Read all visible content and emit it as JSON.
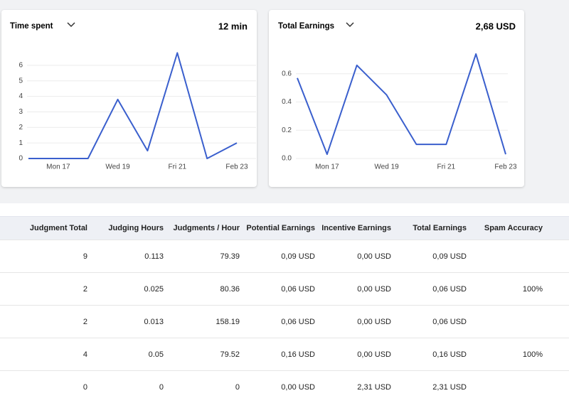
{
  "chart_data": [
    {
      "type": "line",
      "title": "Time spent",
      "total": "12 min",
      "color": "#3a5fcd",
      "categories": [
        null,
        "Mon 17",
        null,
        "Wed 19",
        null,
        "Fri 21",
        null,
        "Feb 23"
      ],
      "values": [
        0,
        0,
        0,
        3.8,
        0.5,
        6.8,
        0,
        1
      ],
      "ylim": [
        0,
        7
      ],
      "yticks": [
        0,
        1,
        2,
        3,
        4,
        5,
        6
      ],
      "grid": true
    },
    {
      "type": "line",
      "title": "Total Earnings",
      "total": "2,68 USD",
      "color": "#3a5fcd",
      "categories": [
        null,
        "Mon 17",
        null,
        "Wed 19",
        null,
        "Fri 21",
        null,
        "Feb 23"
      ],
      "values": [
        0.57,
        0.03,
        0.66,
        0.45,
        0.1,
        0.1,
        0.74,
        0.03
      ],
      "ylim": [
        0,
        0.77
      ],
      "yticks": [
        {
          "value": 0,
          "label": "0.0"
        },
        0.2,
        0.4,
        0.6
      ],
      "grid": true
    }
  ],
  "table": {
    "columns": [
      "Judgment Total",
      "Judging Hours",
      "Judgments / Hour",
      "Potential Earnings",
      "Incentive Earnings",
      "Total Earnings",
      "Spam Accuracy"
    ],
    "rows": [
      [
        "9",
        "0.113",
        "79.39",
        "0,09 USD",
        "0,00 USD",
        "0,09 USD",
        null
      ],
      [
        "2",
        "0.025",
        "80.36",
        "0,06 USD",
        "0,00 USD",
        "0,06 USD",
        "100%"
      ],
      [
        "2",
        "0.013",
        "158.19",
        "0,06 USD",
        "0,00 USD",
        "0,06 USD",
        null
      ],
      [
        "4",
        "0.05",
        "79.52",
        "0,16 USD",
        "0,00 USD",
        "0,16 USD",
        "100%"
      ],
      [
        "0",
        "0",
        "0",
        "0,00 USD",
        "2,31 USD",
        "2,31 USD",
        null
      ]
    ]
  }
}
